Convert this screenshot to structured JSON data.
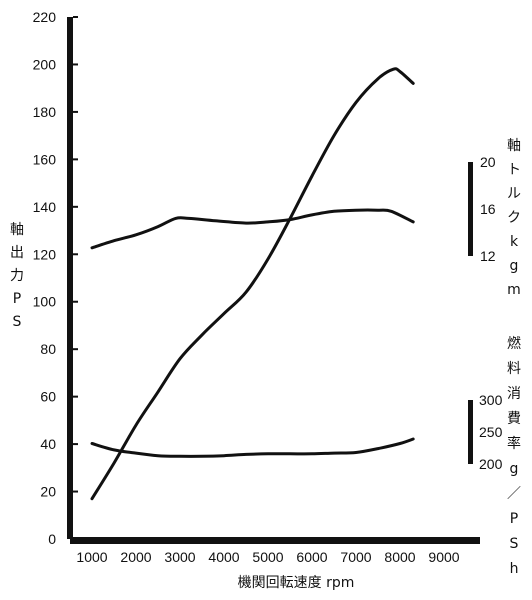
{
  "chart_data": {
    "type": "line",
    "title": "",
    "xlabel": "機関回転速度 rpm",
    "x_axis": {
      "range": [
        600,
        9000
      ],
      "ticks": [
        1000,
        2000,
        3000,
        4000,
        5000,
        6000,
        7000,
        8000,
        9000
      ]
    },
    "left_axis": {
      "label_chars": [
        "軸",
        "出",
        "力",
        "P",
        "S"
      ],
      "range": [
        0,
        220
      ],
      "ticks": [
        0,
        20,
        40,
        60,
        80,
        100,
        120,
        140,
        160,
        180,
        200,
        220
      ]
    },
    "torque_axis": {
      "label_chars": [
        "軸",
        "ト",
        "ル",
        "ク",
        "k",
        "g",
        "m"
      ],
      "range": [
        12,
        20
      ],
      "ticks": [
        12,
        16,
        20
      ]
    },
    "fuel_axis": {
      "label_chars": [
        "燃",
        "料",
        "消",
        "費",
        "率",
        "g",
        "／",
        "P",
        "S",
        "h"
      ],
      "range": [
        200,
        300
      ],
      "ticks": [
        200,
        250,
        300
      ]
    },
    "series": [
      {
        "axis": "power",
        "x": [
          1000,
          1500,
          2000,
          2500,
          3000,
          3500,
          4000,
          4500,
          5000,
          5500,
          6000,
          6500,
          7000,
          7500,
          7850,
          8000,
          8300
        ],
        "values": [
          17,
          32,
          48,
          62,
          76,
          86,
          95,
          104,
          118,
          135,
          153,
          170,
          184,
          194,
          198,
          197,
          192
        ]
      },
      {
        "axis": "torque",
        "x": [
          1000,
          1500,
          2000,
          2500,
          2900,
          3200,
          3800,
          4500,
          5000,
          5500,
          6000,
          6500,
          7000,
          7500,
          7800,
          8300
        ],
        "values": [
          12.7,
          13.3,
          13.8,
          14.5,
          15.2,
          15.2,
          15.0,
          14.8,
          14.9,
          15.1,
          15.5,
          15.8,
          15.9,
          15.9,
          15.8,
          14.9
        ]
      },
      {
        "axis": "fuel",
        "x": [
          1000,
          1500,
          2000,
          2500,
          3000,
          3500,
          4000,
          4500,
          5000,
          5500,
          6000,
          6500,
          7000,
          7500,
          8000,
          8300
        ],
        "values": [
          232,
          222,
          217,
          213,
          212,
          212,
          213,
          215,
          216,
          216,
          216,
          217,
          218,
          224,
          232,
          239
        ]
      }
    ]
  }
}
